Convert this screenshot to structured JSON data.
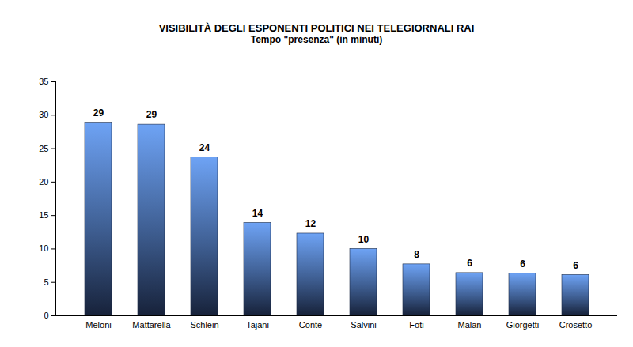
{
  "chart_data": {
    "type": "bar",
    "title": "VISIBILITÀ DEGLI ESPONENTI POLITICI NEI TELEGIORNALI RAI",
    "subtitle": "Tempo \"presenza\" (in minuti)",
    "categories": [
      "Meloni",
      "Mattarella",
      "Schlein",
      "Tajani",
      "Conte",
      "Salvini",
      "Foti",
      "Malan",
      "Giorgetti",
      "Crosetto"
    ],
    "values": [
      28.9,
      28.6,
      23.7,
      13.9,
      12.3,
      10.0,
      7.7,
      6.4,
      6.3,
      6.1
    ],
    "value_labels": [
      "29",
      "29",
      "24",
      "14",
      "12",
      "10",
      "8",
      "6",
      "6",
      "6"
    ],
    "data_labels": true,
    "color": "#6ea3f5",
    "ylim": [
      0,
      35
    ],
    "yticks": [
      0,
      5,
      10,
      15,
      20,
      25,
      30,
      35
    ],
    "grid": false
  }
}
